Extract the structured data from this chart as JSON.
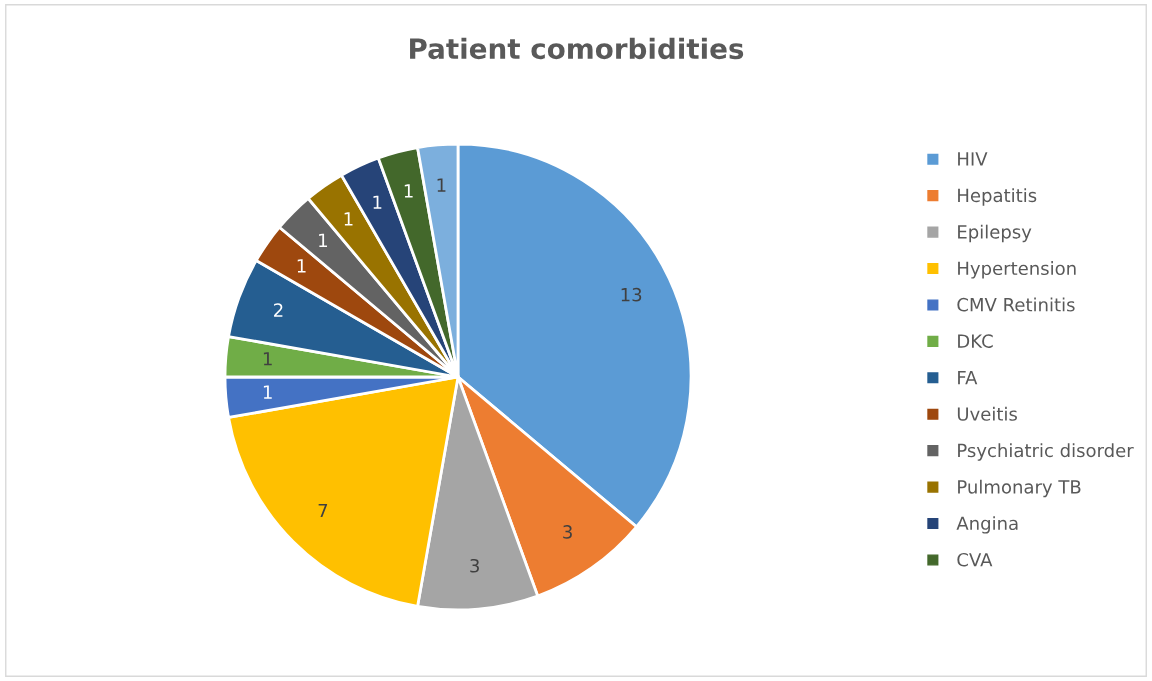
{
  "chart_data": {
    "type": "pie",
    "title": "Patient comorbidities",
    "categories": [
      "HIV",
      "Hepatitis",
      "Epilepsy",
      "Hypertension",
      "CMV Retinitis",
      "DKC",
      "FA",
      "Uveitis",
      "Psychiatric disorder",
      "Pulmonary TB",
      "Angina",
      "CVA",
      null
    ],
    "values": [
      13,
      3,
      3,
      7,
      1,
      1,
      2,
      1,
      1,
      1,
      1,
      1,
      1
    ],
    "colors": [
      "#5b9bd5",
      "#ed7d31",
      "#a5a5a5",
      "#ffc000",
      "#4472c4",
      "#70ad47",
      "#255e91",
      "#9e480e",
      "#636363",
      "#997300",
      "#264478",
      "#43682b",
      "#7cafdd"
    ],
    "data_labels": true,
    "legend": "right"
  }
}
